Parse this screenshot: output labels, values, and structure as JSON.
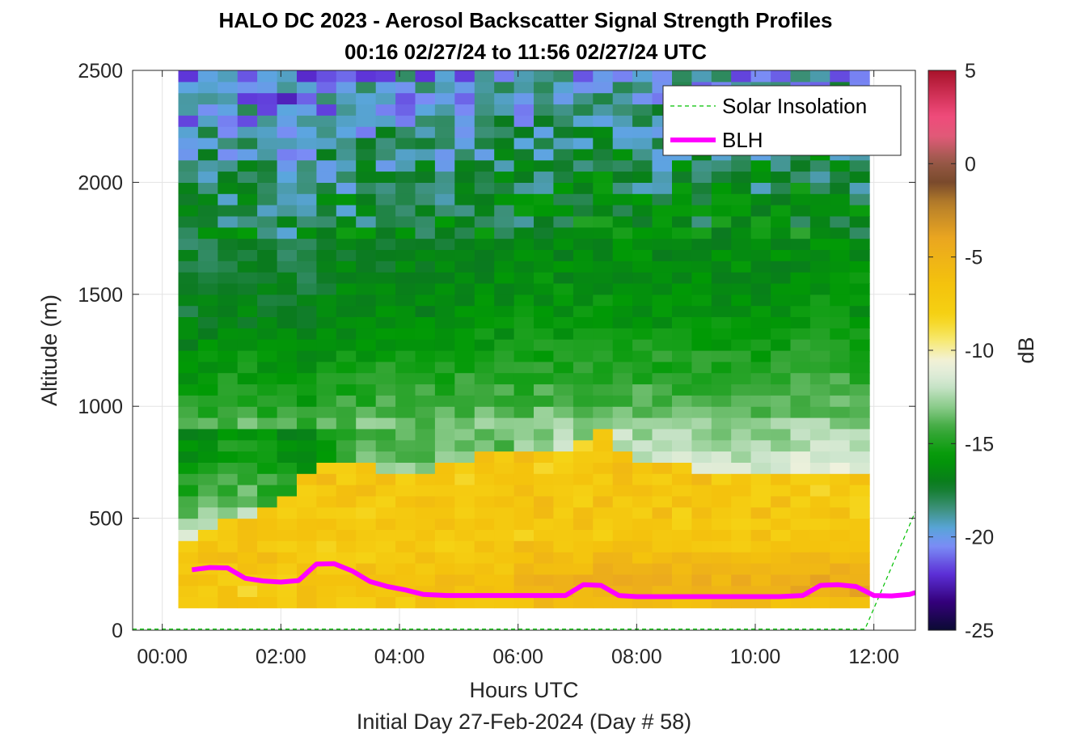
{
  "chart_data": {
    "type": "heatmap",
    "title": "HALO DC 2023 - Aerosol Backscatter Signal Strength Profiles",
    "subtitle": "00:16 02/27/24 to 11:56 02/27/24  UTC",
    "xlabel": "Hours UTC",
    "ylabel": "Altitude (m)",
    "footnote": "Initial Day 27-Feb-2024 (Day # 58)",
    "colorbar_label": "dB",
    "xlim": [
      -0.5,
      12.7
    ],
    "ylim": [
      0,
      2500
    ],
    "clim": [
      -25,
      5
    ],
    "xticks": [
      0,
      2,
      4,
      6,
      8,
      10,
      12
    ],
    "xtick_labels": [
      "00:00",
      "02:00",
      "04:00",
      "06:00",
      "08:00",
      "10:00",
      "12:00"
    ],
    "yticks": [
      0,
      500,
      1000,
      1500,
      2000,
      2500
    ],
    "ytick_labels": [
      "0",
      "500",
      "1000",
      "1500",
      "2000",
      "2500"
    ],
    "cticks": [
      5,
      0,
      -5,
      -10,
      -15,
      -20,
      -25
    ],
    "ctick_labels": [
      "5",
      "0",
      "-5",
      "-10",
      "-15",
      "-20",
      "-25"
    ],
    "grid": true,
    "legend_position": "top-right",
    "time_start_hours": 0.27,
    "time_step_hours": 0.333,
    "altitude_start_m": 100,
    "altitude_step_m": 50,
    "profile_columns": 35,
    "altitude_knots_m": [
      100,
      150,
      200,
      250,
      300,
      350,
      400,
      500,
      550,
      600,
      650,
      700,
      750,
      800,
      900,
      1000,
      1200,
      1400,
      1700,
      2000,
      2200,
      2500
    ],
    "profile_knots_db": [
      -6,
      -5,
      -5,
      -5.5,
      -6,
      -7,
      -8,
      -9.5,
      -10.5,
      -11,
      -11,
      -11.5,
      -12,
      -12.5,
      -13,
      -14,
      -15,
      -16,
      -16.5,
      -17.5,
      -18.5,
      -20
    ],
    "column_offset_db": [
      -4,
      -3.5,
      -3,
      -3,
      -3.5,
      -4,
      -4,
      -3,
      -2,
      -1.5,
      -1.5,
      -1.5,
      -1.5,
      -1,
      -1,
      -1,
      -1,
      -0.5,
      0,
      0,
      0,
      0.5,
      0.5,
      0,
      0,
      0,
      0,
      0,
      0,
      0,
      0,
      0.5,
      0.5,
      0.5,
      0.5
    ],
    "aerosol_top_m": [
      400,
      450,
      500,
      500,
      550,
      600,
      700,
      750,
      750,
      750,
      700,
      700,
      700,
      750,
      750,
      800,
      800,
      800,
      800,
      800,
      850,
      900,
      800,
      750,
      750,
      750,
      700,
      700,
      700,
      700,
      700,
      700,
      700,
      700,
      700
    ],
    "series": [
      {
        "name": "Solar Insolation",
        "color": "#00c000",
        "x": [
          -0.5,
          11.85,
          12.7
        ],
        "y": [
          5,
          5,
          530
        ]
      },
      {
        "name": "BLH",
        "color": "#ff00ff",
        "x": [
          0.5,
          0.8,
          1.1,
          1.4,
          1.7,
          2.0,
          2.3,
          2.6,
          2.9,
          3.2,
          3.5,
          3.8,
          4.1,
          4.4,
          4.8,
          5.2,
          5.6,
          6.0,
          6.4,
          6.8,
          7.1,
          7.4,
          7.7,
          8.0,
          8.4,
          8.8,
          9.2,
          9.6,
          10.0,
          10.4,
          10.8,
          11.1,
          11.4,
          11.7,
          12.0,
          12.3,
          12.6,
          12.7
        ],
        "y": [
          270,
          280,
          278,
          232,
          220,
          215,
          222,
          295,
          297,
          265,
          218,
          195,
          180,
          160,
          155,
          155,
          155,
          155,
          155,
          155,
          203,
          200,
          155,
          150,
          150,
          150,
          150,
          150,
          150,
          150,
          155,
          200,
          203,
          195,
          155,
          153,
          160,
          168
        ]
      }
    ]
  }
}
